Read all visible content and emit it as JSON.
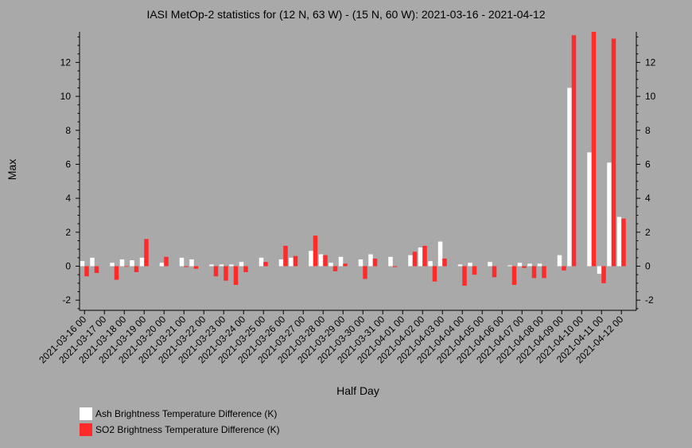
{
  "chart_data": {
    "type": "bar",
    "title": "IASI MetOp-2 statistics for (12 N, 63 W) - (15 N, 60 W): 2021-03-16 - 2021-04-12",
    "xlabel": "Half Day",
    "ylabel": "Max",
    "ylim": [
      -2.6,
      13.8
    ],
    "yticks": [
      -2,
      0,
      2,
      4,
      6,
      8,
      10,
      12
    ],
    "grid": false,
    "legend_position": "bottom-left",
    "categories": [
      "2021-03-16 00",
      "2021-03-16 12",
      "2021-03-17 00",
      "2021-03-17 12",
      "2021-03-18 00",
      "2021-03-18 12",
      "2021-03-19 00",
      "2021-03-19 12",
      "2021-03-20 00",
      "2021-03-20 12",
      "2021-03-21 00",
      "2021-03-21 12",
      "2021-03-22 00",
      "2021-03-22 12",
      "2021-03-23 00",
      "2021-03-23 12",
      "2021-03-24 00",
      "2021-03-24 12",
      "2021-03-25 00",
      "2021-03-25 12",
      "2021-03-26 00",
      "2021-03-26 12",
      "2021-03-27 00",
      "2021-03-27 12",
      "2021-03-28 00",
      "2021-03-28 12",
      "2021-03-29 00",
      "2021-03-29 12",
      "2021-03-30 00",
      "2021-03-30 12",
      "2021-03-31 00",
      "2021-03-31 12",
      "2021-04-01 00",
      "2021-04-01 12",
      "2021-04-02 00",
      "2021-04-02 12",
      "2021-04-03 00",
      "2021-04-03 12",
      "2021-04-04 00",
      "2021-04-04 12",
      "2021-04-05 00",
      "2021-04-05 12",
      "2021-04-06 00",
      "2021-04-06 12",
      "2021-04-07 00",
      "2021-04-07 12",
      "2021-04-08 00",
      "2021-04-08 12",
      "2021-04-09 00",
      "2021-04-09 12",
      "2021-04-10 00",
      "2021-04-10 12",
      "2021-04-11 00",
      "2021-04-11 12",
      "2021-04-12 00",
      "2021-04-12 12"
    ],
    "tick_labels": [
      "2021-03-16 00",
      "2021-03-17 00",
      "2021-03-18 00",
      "2021-03-19 00",
      "2021-03-20 00",
      "2021-03-21 00",
      "2021-03-22 00",
      "2021-03-23 00",
      "2021-03-24 00",
      "2021-03-25 00",
      "2021-03-26 00",
      "2021-03-27 00",
      "2021-03-28 00",
      "2021-03-29 00",
      "2021-03-30 00",
      "2021-03-31 00",
      "2021-04-01 00",
      "2021-04-02 00",
      "2021-04-03 00",
      "2021-04-04 00",
      "2021-04-05 00",
      "2021-04-06 00",
      "2021-04-07 00",
      "2021-04-08 00",
      "2021-04-09 00",
      "2021-04-10 00",
      "2021-04-11 00",
      "2021-04-12 00"
    ],
    "series": [
      {
        "name": "Ash Brightness Temperature Difference (K)",
        "color": "#ffffff",
        "values": [
          0.3,
          0.5,
          null,
          0.2,
          0.4,
          0.35,
          0.5,
          null,
          0.2,
          null,
          0.5,
          0.4,
          null,
          0.1,
          0.1,
          0.1,
          0.25,
          null,
          0.5,
          null,
          0.4,
          0.5,
          null,
          0.9,
          0.7,
          0.2,
          0.55,
          null,
          0.4,
          0.7,
          null,
          0.55,
          null,
          0.65,
          1.1,
          0.3,
          1.45,
          null,
          0.1,
          0.2,
          null,
          0.25,
          null,
          0.05,
          0.2,
          0.15,
          0.15,
          null,
          0.65,
          10.5,
          null,
          6.7,
          -0.45,
          6.1,
          2.9,
          null
        ]
      },
      {
        "name": "SO2 Brightness Temperature Difference (K)",
        "color": "#ff2a2a",
        "values": [
          -0.6,
          -0.4,
          null,
          -0.8,
          0.0,
          -0.35,
          1.6,
          null,
          0.55,
          null,
          -0.05,
          -0.15,
          null,
          -0.6,
          -0.85,
          -1.1,
          -0.35,
          null,
          0.25,
          null,
          1.2,
          0.6,
          null,
          1.8,
          0.65,
          -0.3,
          0.15,
          null,
          -0.75,
          0.45,
          null,
          -0.05,
          null,
          0.85,
          1.2,
          -0.9,
          0.45,
          null,
          -1.15,
          -0.5,
          null,
          -0.65,
          null,
          -1.1,
          -0.1,
          -0.7,
          -0.7,
          null,
          -0.25,
          13.6,
          null,
          13.8,
          -1.0,
          13.4,
          2.8,
          null
        ]
      }
    ]
  }
}
